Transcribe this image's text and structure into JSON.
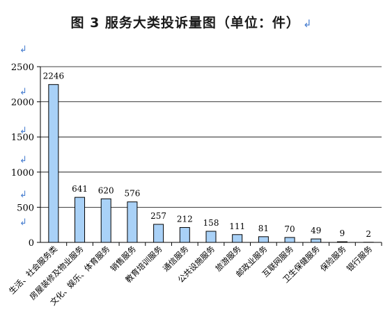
{
  "title": "图 3    服务大类投诉量图（单位：件）",
  "title_mark": "↲",
  "return_mark": "↲",
  "chart_data": {
    "type": "bar",
    "title": "图 3    服务大类投诉量图（单位：件）",
    "xlabel": "",
    "ylabel": "",
    "ylim": [
      0,
      2500
    ],
    "yticks": [
      "0",
      "500",
      "1000",
      "1500",
      "2000",
      "2500"
    ],
    "grid": true,
    "legend": "none",
    "bar_color": "#a9d1f7",
    "bar_stroke": "#000000",
    "categories": [
      "生活、社会服务类",
      "房屋装修及物业服务",
      "文化、娱乐、体育服务",
      "销售服务",
      "教育培训服务",
      "通信服务",
      "公共设施服务",
      "旅游服务",
      "邮政业服务",
      "互联网服务",
      "卫生保健服务",
      "保险服务",
      "银行服务"
    ],
    "values": [
      2246,
      641,
      620,
      576,
      257,
      212,
      158,
      111,
      81,
      70,
      49,
      9,
      2
    ],
    "data_labels": [
      "2246",
      "641",
      "620",
      "576",
      "257",
      "212",
      "158",
      "111",
      "81",
      "70",
      "49",
      "9",
      "2"
    ]
  }
}
